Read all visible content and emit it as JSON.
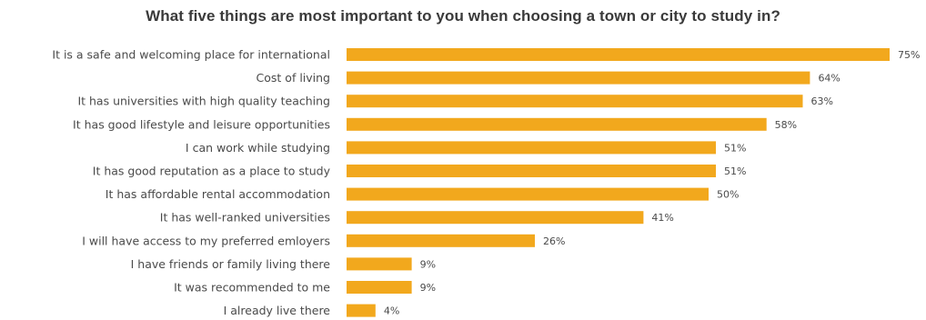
{
  "chart_data": {
    "type": "bar",
    "orientation": "horizontal",
    "title": "What five things are most important to you when choosing a town or city to study in?",
    "categories": [
      "It is a safe and welcoming place for international",
      "Cost of living",
      "It has universities with high quality teaching",
      "It has good lifestyle and leisure opportunities",
      "I can work while studying",
      "It has good reputation as a place to study",
      "It has affordable rental accommodation",
      "It has well-ranked universities",
      "I will have access to my preferred emloyers",
      "I have friends or family living there",
      "It was recommended to me",
      "I already live there"
    ],
    "values": [
      75,
      64,
      63,
      58,
      51,
      51,
      50,
      41,
      26,
      9,
      9,
      4
    ],
    "value_labels": [
      "75%",
      "64%",
      "63%",
      "58%",
      "51%",
      "51%",
      "50%",
      "41%",
      "26%",
      "9%",
      "9%",
      "4%"
    ],
    "value_unit": "%",
    "xlim": [
      0,
      75
    ],
    "grid": false,
    "legend": "none",
    "bar_color": "#f2a81d"
  }
}
